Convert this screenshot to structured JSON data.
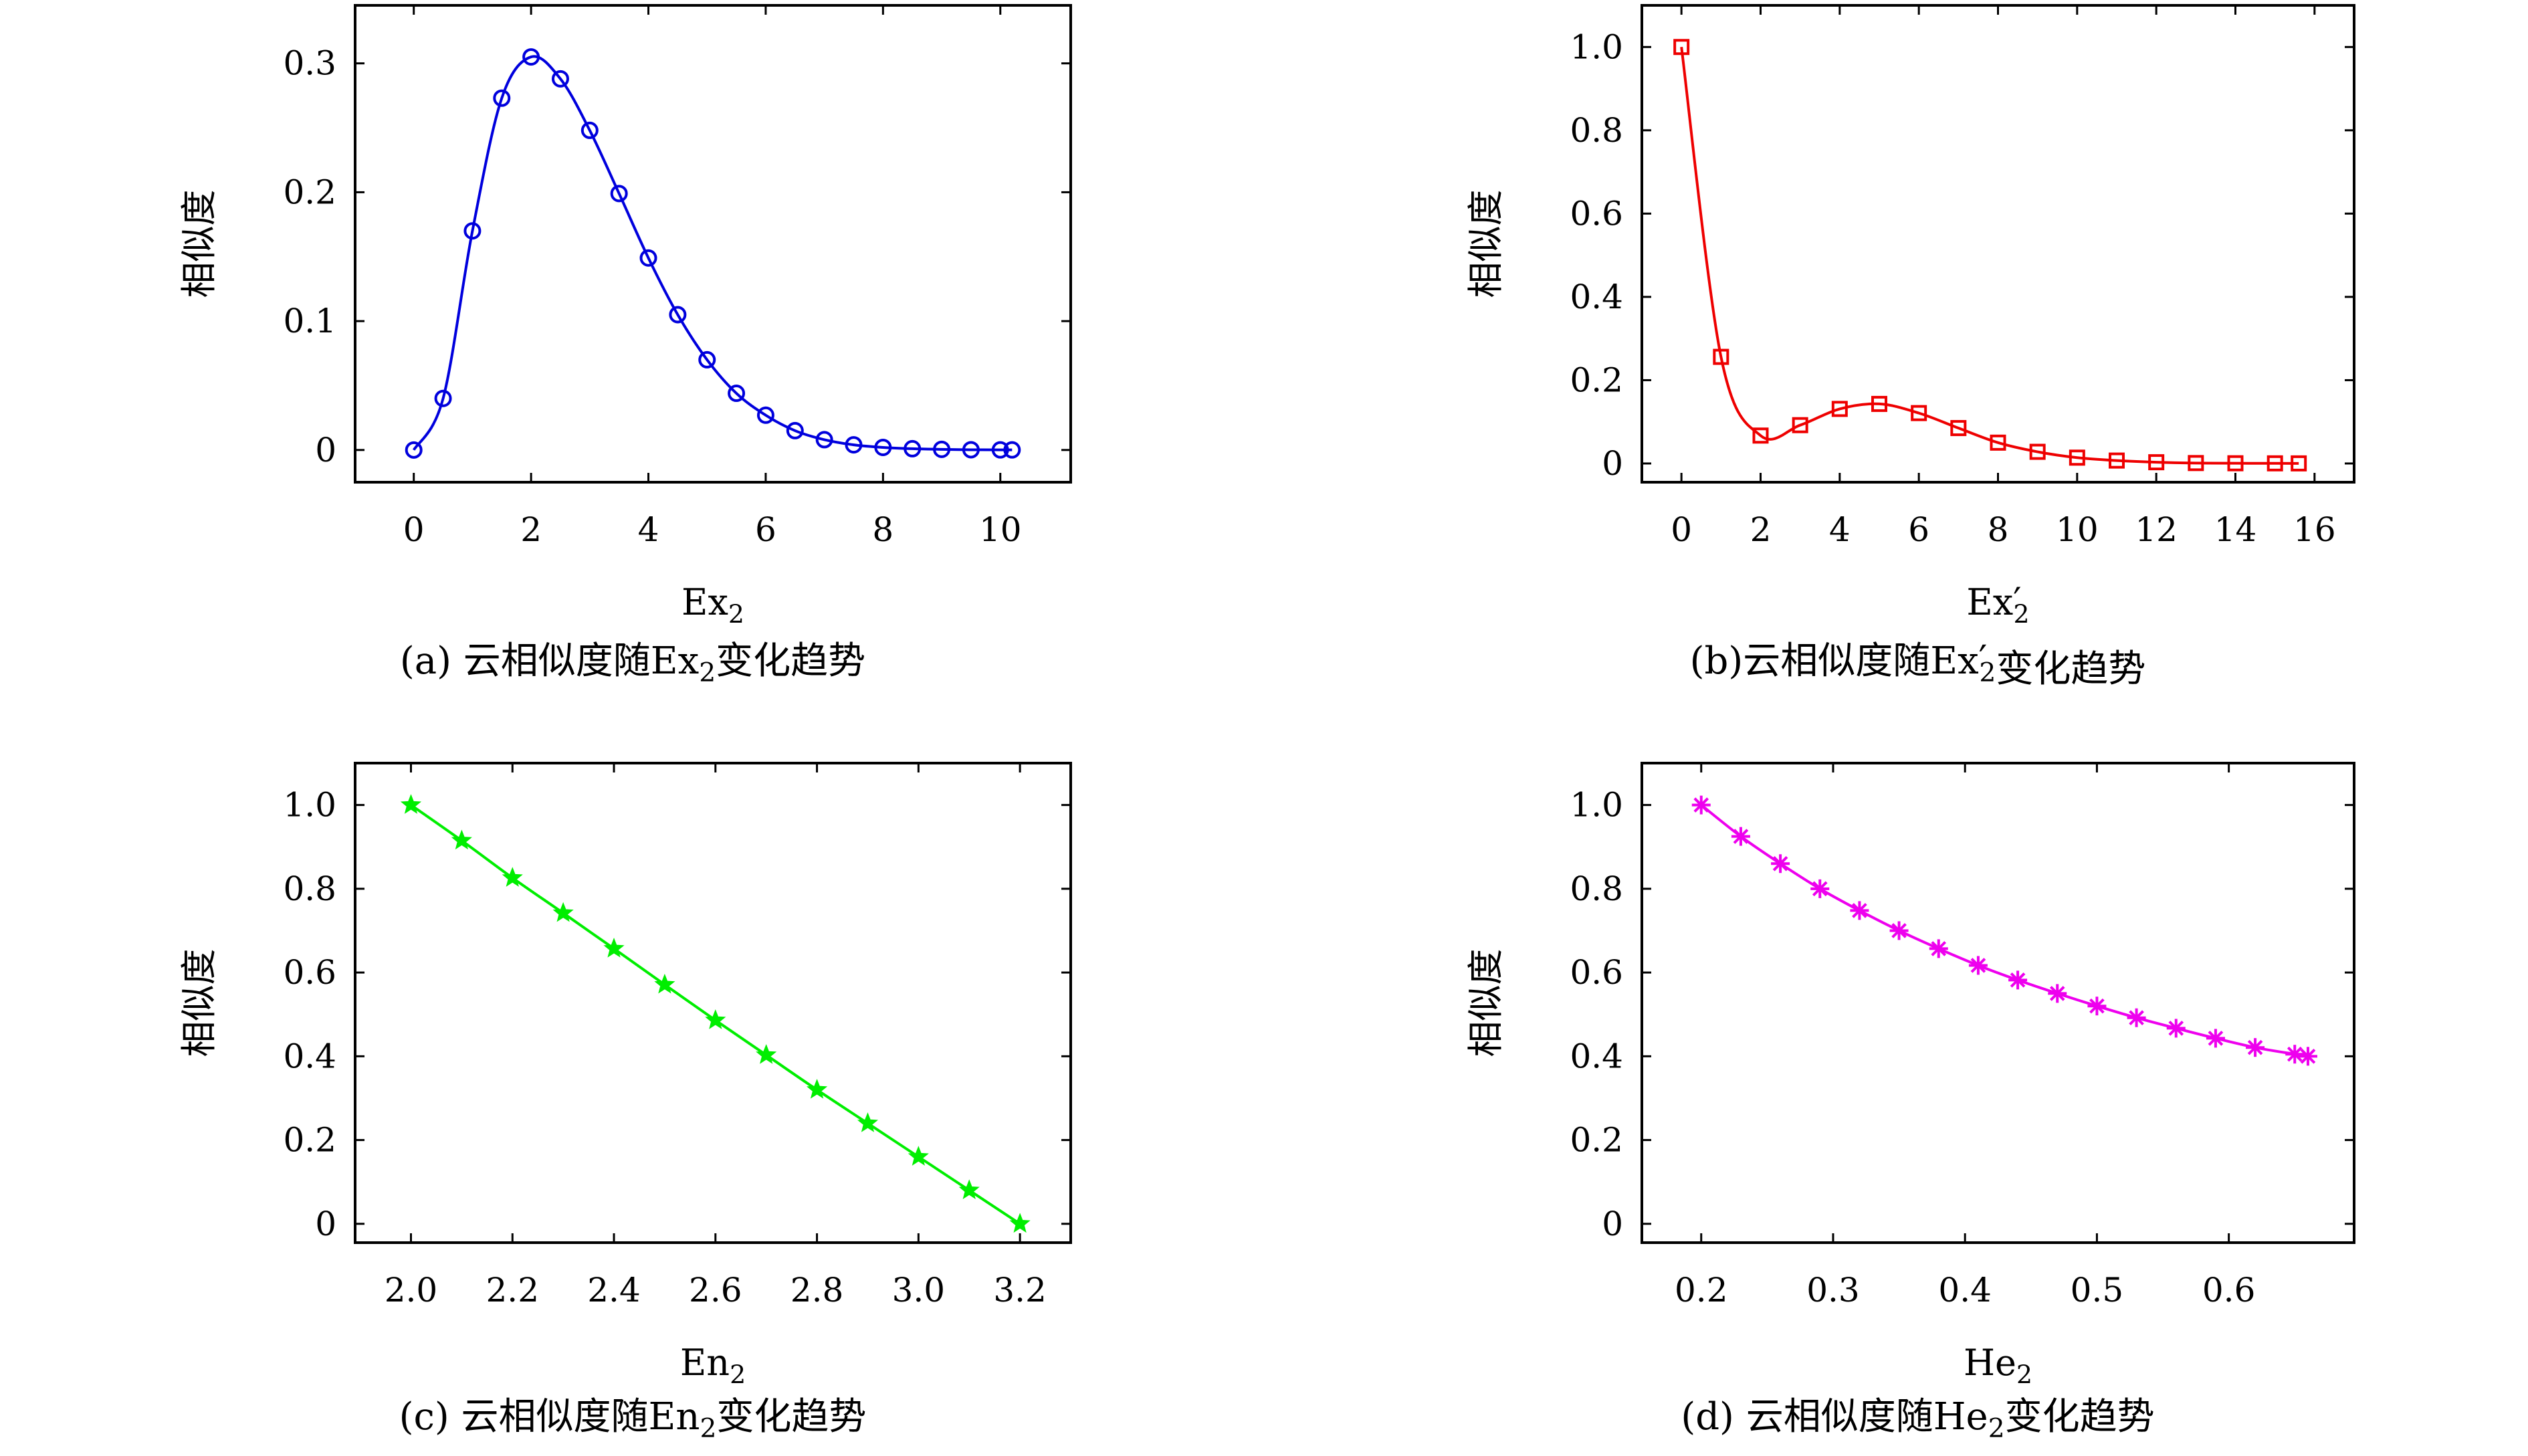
{
  "chart_data": [
    {
      "id": "a",
      "type": "line",
      "color": "#0000dd",
      "marker": "circle",
      "xlabel": {
        "base": "Ex",
        "sub": "2",
        "prime": ""
      },
      "ylabel": "相似度",
      "caption": {
        "pre": "(a) 云相似度随",
        "base": "Ex",
        "sub": "2",
        "prime": "",
        "post": "变化趋势"
      },
      "xlim": [
        -1,
        11.2
      ],
      "ylim": [
        -0.025,
        0.345
      ],
      "xticks": [
        0,
        2,
        4,
        6,
        8,
        10
      ],
      "xticklabels": [
        "0",
        "2",
        "4",
        "6",
        "8",
        "10"
      ],
      "yticks": [
        0,
        0.1,
        0.2,
        0.3
      ],
      "yticklabels": [
        "0",
        "0.1",
        "0.2",
        "0.3"
      ],
      "x": [
        0,
        0.5,
        1,
        1.5,
        2,
        2.5,
        3,
        3.5,
        4,
        4.5,
        5,
        5.5,
        6,
        6.5,
        7,
        7.5,
        8,
        8.5,
        9,
        9.5,
        10,
        10.2
      ],
      "y": [
        0,
        0.04,
        0.17,
        0.273,
        0.305,
        0.288,
        0.248,
        0.199,
        0.149,
        0.105,
        0.07,
        0.044,
        0.027,
        0.015,
        0.008,
        0.004,
        0.002,
        0.001,
        0.0005,
        0.0002,
        0.0001,
        0.0001
      ]
    },
    {
      "id": "b",
      "type": "line",
      "color": "#ee0000",
      "marker": "square",
      "xlabel": {
        "base": "Ex",
        "sub": "2",
        "prime": "′"
      },
      "ylabel": "相似度",
      "caption": {
        "pre": "(b)云相似度随",
        "base": "Ex",
        "sub": "2",
        "prime": "′",
        "post": "变化趋势"
      },
      "xlim": [
        -1,
        17
      ],
      "ylim": [
        -0.045,
        1.1
      ],
      "xticks": [
        0,
        2,
        4,
        6,
        8,
        10,
        12,
        14,
        16
      ],
      "xticklabels": [
        "0",
        "2",
        "4",
        "6",
        "8",
        "10",
        "12",
        "14",
        "16"
      ],
      "yticks": [
        0,
        0.2,
        0.4,
        0.6,
        0.8,
        1.0
      ],
      "yticklabels": [
        "0",
        "0.2",
        "0.4",
        "0.6",
        "0.8",
        "1.0"
      ],
      "x": [
        0,
        1,
        2,
        3,
        4,
        5,
        6,
        7,
        8,
        9,
        10,
        11,
        12,
        13,
        14,
        15,
        15.6
      ],
      "y": [
        1.0,
        0.256,
        0.067,
        0.092,
        0.131,
        0.143,
        0.121,
        0.085,
        0.05,
        0.028,
        0.014,
        0.007,
        0.003,
        0.001,
        0.0005,
        0.0003,
        0.0002
      ]
    },
    {
      "id": "c",
      "type": "line",
      "color": "#00ee00",
      "marker": "star",
      "xlabel": {
        "base": "En",
        "sub": "2",
        "prime": ""
      },
      "ylabel": "相似度",
      "caption": {
        "pre": "(c) 云相似度随",
        "base": "En",
        "sub": "2",
        "prime": "",
        "post": "变化趋势"
      },
      "xlim": [
        1.89,
        3.3
      ],
      "ylim": [
        -0.045,
        1.1
      ],
      "xticks": [
        2.0,
        2.2,
        2.4,
        2.6,
        2.8,
        3.0,
        3.2
      ],
      "xticklabels": [
        "2.0",
        "2.2",
        "2.4",
        "2.6",
        "2.8",
        "3.0",
        "3.2"
      ],
      "yticks": [
        0,
        0.2,
        0.4,
        0.6,
        0.8,
        1.0
      ],
      "yticklabels": [
        "0",
        "0.2",
        "0.4",
        "0.6",
        "0.8",
        "1.0"
      ],
      "x": [
        2.0,
        2.1,
        2.2,
        2.3,
        2.4,
        2.5,
        2.6,
        2.7,
        2.8,
        2.9,
        3.0,
        3.1,
        3.2
      ],
      "y": [
        1.0,
        0.915,
        0.826,
        0.742,
        0.657,
        0.571,
        0.486,
        0.403,
        0.32,
        0.24,
        0.16,
        0.08,
        0.0
      ]
    },
    {
      "id": "d",
      "type": "line",
      "color": "#ee00ee",
      "marker": "asterisk",
      "xlabel": {
        "base": "He",
        "sub": "2",
        "prime": ""
      },
      "ylabel": "相似度",
      "caption": {
        "pre": "(d) 云相似度随",
        "base": "He",
        "sub": "2",
        "prime": "",
        "post": "变化趋势"
      },
      "xlim": [
        0.155,
        0.695
      ],
      "ylim": [
        -0.045,
        1.1
      ],
      "xticks": [
        0.2,
        0.3,
        0.4,
        0.5,
        0.6
      ],
      "xticklabels": [
        "0.2",
        "0.3",
        "0.4",
        "0.5",
        "0.6"
      ],
      "yticks": [
        0,
        0.2,
        0.4,
        0.6,
        0.8,
        1.0
      ],
      "yticklabels": [
        "0",
        "0.2",
        "0.4",
        "0.6",
        "0.8",
        "1.0"
      ],
      "x": [
        0.2,
        0.23,
        0.26,
        0.29,
        0.32,
        0.35,
        0.38,
        0.41,
        0.44,
        0.47,
        0.5,
        0.53,
        0.56,
        0.59,
        0.62,
        0.65,
        0.66
      ],
      "y": [
        1.0,
        0.925,
        0.86,
        0.8,
        0.748,
        0.7,
        0.657,
        0.617,
        0.582,
        0.55,
        0.52,
        0.492,
        0.467,
        0.443,
        0.421,
        0.405,
        0.4
      ]
    }
  ]
}
